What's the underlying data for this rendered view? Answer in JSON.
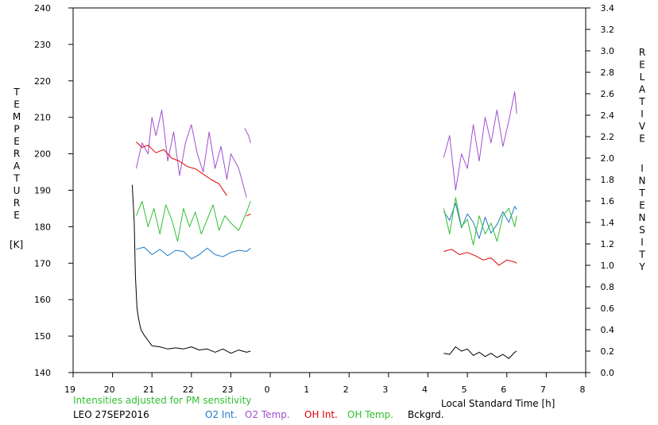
{
  "chart_data": {
    "type": "line",
    "left_axis": {
      "label_letters": [
        "T",
        "E",
        "M",
        "P",
        "E",
        "R",
        "A",
        "T",
        "U",
        "R",
        "E"
      ],
      "unit": "[K]",
      "ylim": [
        140,
        240
      ],
      "ticks": [
        "140",
        "150",
        "160",
        "170",
        "180",
        "190",
        "200",
        "210",
        "220",
        "230",
        "240"
      ]
    },
    "right_axis": {
      "label_letters_1": [
        "R",
        "E",
        "L",
        "A",
        "T",
        "I",
        "V",
        "E"
      ],
      "label_letters_2": [
        "I",
        "N",
        "T",
        "E",
        "N",
        "S",
        "I",
        "T",
        "Y"
      ],
      "ylim": [
        0.0,
        3.4
      ],
      "ticks": [
        "0.0",
        "0.2",
        "0.4",
        "0.6",
        "0.8",
        "1.0",
        "1.2",
        "1.4",
        "1.6",
        "1.8",
        "2.0",
        "2.2",
        "2.4",
        "2.6",
        "2.8",
        "3.0",
        "3.2",
        "3.4"
      ]
    },
    "x_axis": {
      "label": "Local Standard Time [h]",
      "ticks": [
        "19",
        "20",
        "21",
        "22",
        "23",
        "0",
        "1",
        "2",
        "3",
        "4",
        "5",
        "6",
        "7",
        "8"
      ],
      "xlim": [
        19,
        32
      ]
    },
    "note": "Intensities adjusted for PM sensitivity",
    "station": "LEO 27SEP2016",
    "series": [
      {
        "name": "O2 Int.",
        "color": "#1e78c8",
        "axis": "right",
        "segments": [
          {
            "x": [
              20.6,
              20.8,
              21.0,
              21.2,
              21.4,
              21.6,
              21.8,
              22.0,
              22.2,
              22.4,
              22.6,
              22.8,
              23.0,
              23.2,
              23.4,
              23.5
            ],
            "y": [
              1.15,
              1.17,
              1.1,
              1.15,
              1.09,
              1.14,
              1.13,
              1.06,
              1.1,
              1.16,
              1.1,
              1.08,
              1.12,
              1.14,
              1.13,
              1.16
            ]
          },
          {
            "x": [
              28.4,
              28.55,
              28.7,
              28.85,
              29.0,
              29.15,
              29.3,
              29.45,
              29.6,
              29.75,
              29.9,
              30.05,
              30.2,
              30.25
            ],
            "y": [
              1.5,
              1.42,
              1.58,
              1.35,
              1.48,
              1.4,
              1.25,
              1.45,
              1.3,
              1.38,
              1.5,
              1.4,
              1.55,
              1.52
            ]
          }
        ]
      },
      {
        "name": "O2 Temp.",
        "color": "#a050d0",
        "axis": "left",
        "segments": [
          {
            "x": [
              20.6,
              20.75,
              20.9,
              21.0,
              21.1,
              21.25,
              21.4,
              21.55,
              21.7,
              21.85,
              22.0,
              22.15,
              22.3,
              22.45,
              22.6,
              22.75,
              22.9,
              23.0,
              23.2,
              23.4
            ],
            "y": [
              196,
              203,
              200,
              210,
              205,
              212,
              198,
              206,
              194,
              203,
              208,
              200,
              195,
              206,
              196,
              202,
              193,
              200,
              196,
              188
            ]
          },
          {
            "x": [
              23.35,
              23.45,
              23.5
            ],
            "y": [
              207,
              205,
              203
            ]
          },
          {
            "x": [
              28.4,
              28.55,
              28.7,
              28.85,
              29.0,
              29.15,
              29.3,
              29.45,
              29.6,
              29.75,
              29.9,
              30.05,
              30.2,
              30.25
            ],
            "y": [
              199,
              205,
              190,
              200,
              196,
              208,
              198,
              210,
              203,
              212,
              202,
              209,
              217,
              211
            ]
          }
        ]
      },
      {
        "name": "OH Int.",
        "color": "#e00000",
        "axis": "right",
        "segments": [
          {
            "x": [
              20.6,
              20.75,
              20.9,
              21.1,
              21.3,
              21.5,
              21.7,
              21.9,
              22.1,
              22.3,
              22.5,
              22.7,
              22.9
            ],
            "y": [
              2.15,
              2.1,
              2.12,
              2.05,
              2.08,
              2.0,
              1.97,
              1.92,
              1.9,
              1.85,
              1.8,
              1.76,
              1.65
            ]
          },
          {
            "x": [
              23.4,
              23.5
            ],
            "y": [
              1.46,
              1.48
            ]
          },
          {
            "x": [
              28.4,
              28.6,
              28.8,
              29.0,
              29.2,
              29.4,
              29.6,
              29.8,
              30.0,
              30.2,
              30.25
            ],
            "y": [
              1.13,
              1.15,
              1.1,
              1.12,
              1.09,
              1.05,
              1.07,
              1.0,
              1.05,
              1.03,
              1.02
            ]
          }
        ]
      },
      {
        "name": "OH Temp.",
        "color": "#30c030",
        "axis": "left",
        "segments": [
          {
            "x": [
              20.6,
              20.75,
              20.9,
              21.05,
              21.2,
              21.35,
              21.5,
              21.65,
              21.8,
              21.95,
              22.1,
              22.25,
              22.4,
              22.55,
              22.7,
              22.85,
              23.0,
              23.2,
              23.4,
              23.5
            ],
            "y": [
              183,
              187,
              180,
              185,
              178,
              186,
              182,
              176,
              185,
              180,
              184,
              178,
              182,
              186,
              179,
              183,
              181,
              179,
              184,
              187
            ]
          },
          {
            "x": [
              28.4,
              28.55,
              28.7,
              28.85,
              29.0,
              29.15,
              29.3,
              29.45,
              29.6,
              29.75,
              29.9,
              30.05,
              30.2,
              30.25
            ],
            "y": [
              185,
              178,
              188,
              180,
              182,
              175,
              183,
              178,
              181,
              176,
              183,
              185,
              180,
              183
            ]
          }
        ]
      },
      {
        "name": "Bckgrd.",
        "color": "#000000",
        "axis": "right",
        "segments": [
          {
            "x": [
              20.5,
              20.55,
              20.58,
              20.62,
              20.66,
              20.72,
              20.8,
              20.9,
              21.0,
              21.2,
              21.4,
              21.6,
              21.8,
              22.0,
              22.2,
              22.4,
              22.6,
              22.8,
              23.0,
              23.2,
              23.4,
              23.5
            ],
            "y": [
              1.75,
              1.4,
              0.9,
              0.6,
              0.5,
              0.4,
              0.35,
              0.3,
              0.25,
              0.24,
              0.22,
              0.23,
              0.22,
              0.24,
              0.21,
              0.22,
              0.19,
              0.22,
              0.18,
              0.21,
              0.19,
              0.2
            ]
          },
          {
            "x": [
              28.4,
              28.55,
              28.7,
              28.85,
              29.0,
              29.15,
              29.3,
              29.45,
              29.6,
              29.75,
              29.9,
              30.05,
              30.2,
              30.25
            ],
            "y": [
              0.18,
              0.17,
              0.24,
              0.2,
              0.22,
              0.16,
              0.19,
              0.15,
              0.18,
              0.14,
              0.17,
              0.13,
              0.19,
              0.2
            ]
          }
        ]
      }
    ]
  }
}
